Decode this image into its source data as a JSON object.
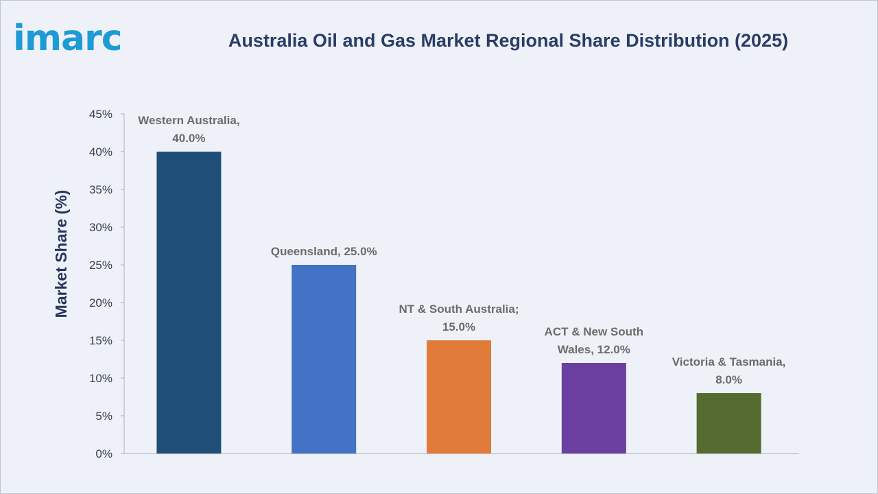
{
  "logo": {
    "text": "imarc",
    "color": "#1e9bd6"
  },
  "chart_data": {
    "type": "bar",
    "title": "Australia Oil and Gas Market Regional Share Distribution (2025)",
    "xlabel": "",
    "ylabel": "Market Share (%)",
    "ylim": [
      0,
      45
    ],
    "yticks": [
      0,
      5,
      10,
      15,
      20,
      25,
      30,
      35,
      40,
      45
    ],
    "ytick_labels": [
      "0%",
      "5%",
      "10%",
      "15%",
      "20%",
      "25%",
      "30%",
      "35%",
      "40%",
      "45%"
    ],
    "grid": false,
    "categories": [
      "Western Australia",
      "Queensland",
      "NT & South Australia",
      "ACT & New South Wales",
      "Victoria & Tasmania"
    ],
    "values": [
      40.0,
      25.0,
      15.0,
      12.0,
      8.0
    ],
    "colors": [
      "#1f4e79",
      "#4472c4",
      "#e07b39",
      "#6b3fa0",
      "#556b2f"
    ],
    "data_labels": [
      [
        "Western Australia,",
        "40.0%"
      ],
      [
        "Queensland, 25.0%"
      ],
      [
        "NT & South Australia;",
        "15.0%"
      ],
      [
        "ACT & New South",
        "Wales, 12.0%"
      ],
      [
        "Victoria & Tasmania,",
        "8.0%"
      ]
    ]
  }
}
